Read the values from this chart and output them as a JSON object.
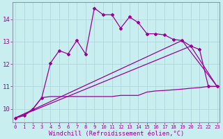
{
  "bg_color": "#c8eef0",
  "grid_color": "#b0d8dc",
  "line_color": "#990099",
  "spine_color": "#8899aa",
  "xlabel": "Windchill (Refroidissement éolien,°C)",
  "x_ticks": [
    0,
    1,
    2,
    3,
    4,
    5,
    6,
    7,
    8,
    9,
    10,
    11,
    12,
    13,
    14,
    15,
    16,
    17,
    18,
    19,
    20,
    21,
    22,
    23
  ],
  "y_ticks": [
    10,
    11,
    12,
    13,
    14
  ],
  "ylim": [
    9.4,
    14.75
  ],
  "xlim": [
    -0.3,
    23.3
  ],
  "line1_x": [
    0,
    1,
    2,
    3,
    4,
    5,
    6,
    7,
    8,
    9,
    10,
    11,
    12,
    13,
    14,
    15,
    16,
    17,
    18,
    19,
    20,
    21,
    22,
    23
  ],
  "line1_y": [
    9.6,
    9.7,
    10.0,
    10.5,
    12.05,
    12.6,
    12.45,
    13.05,
    12.45,
    14.5,
    14.2,
    14.2,
    13.6,
    14.1,
    13.85,
    13.35,
    13.35,
    13.3,
    13.1,
    13.05,
    12.8,
    12.65,
    11.0,
    11.0
  ],
  "line2_x": [
    0,
    1,
    2,
    3,
    4,
    5,
    6,
    7,
    8,
    9,
    10,
    11,
    12,
    13,
    14,
    15,
    16,
    17,
    18,
    19,
    20,
    21,
    22,
    23
  ],
  "line2_y": [
    9.6,
    9.7,
    10.0,
    10.5,
    10.55,
    10.55,
    10.55,
    10.55,
    10.55,
    10.55,
    10.55,
    10.55,
    10.6,
    10.6,
    10.6,
    10.75,
    10.8,
    10.82,
    10.85,
    10.88,
    10.92,
    10.95,
    11.0,
    11.0
  ],
  "line3_x": [
    0,
    20,
    23
  ],
  "line3_y": [
    9.6,
    12.8,
    11.0
  ],
  "line4_x": [
    0,
    19,
    23
  ],
  "line4_y": [
    9.6,
    13.05,
    11.0
  ]
}
